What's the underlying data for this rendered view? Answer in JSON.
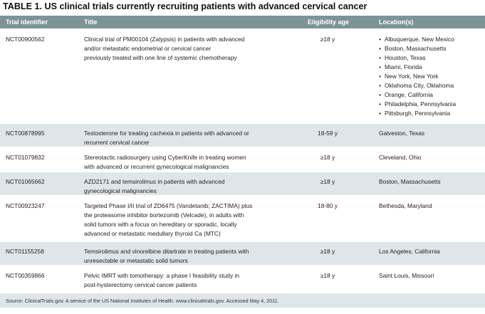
{
  "caption": "TABLE 1. US clinical trials currently recruiting patients with advanced cervical cancer",
  "headers": [
    "Trial identifier",
    "Title",
    "Eligibility age",
    "Location(s)"
  ],
  "rows": [
    {
      "id": "NCT00900562",
      "title_lines": [
        "Clinical trial of PM00104 (Zalypsis) in patients with advanced",
        "and/or metastatic endometrial or cervical cancer",
        "previously treated with one line of systemic chemotherapy"
      ],
      "age": "≥18 y",
      "locations": [
        "Albuquerque, New Mexico",
        "Boston, Massachusetts",
        "Houston, Texas",
        "Miami, Florida",
        "New York, New York",
        "Oklahoma City, Oklahoma",
        "Orange, California",
        "Philadelphia, Pennsylvania",
        "Pittsburgh, Pennsylvania"
      ]
    },
    {
      "id": "NCT00878995",
      "title_lines": [
        "Testosterone for treating cachexia in patients with advanced or",
        "recurrent cervical cancer"
      ],
      "age": "18-59 y",
      "locations": [
        "Galveston, Texas"
      ]
    },
    {
      "id": "NCT01079832",
      "title_lines": [
        "Stereotactic radiosurgery using CyberKnife in treating women",
        "with advanced or recurrent gynecological malignancies"
      ],
      "age": "≥18 y",
      "locations": [
        "Cleveland, Ohio"
      ]
    },
    {
      "id": "NCT01065662",
      "title_lines": [
        "AZD2171 and temsirolimus in patients with advanced",
        "gynecological malignancies"
      ],
      "age": "≥18 y",
      "locations": [
        "Boston, Massachusetts"
      ]
    },
    {
      "id": "NCT00923247",
      "title_lines": [
        "Targeted Phase I/II trial of ZD6475 (Vandetanib; ZACTIMA) plus",
        "the proteasome inhibitor bortezomib (Velcade), in adults with",
        "solid tumors with a focus on hereditary or sporadic, locally",
        "advanced or metastatic medullary thyroid Ca (MTC)"
      ],
      "age": "18-80 y",
      "locations": [
        "Bethesda, Maryland"
      ]
    },
    {
      "id": "NCT01155258",
      "title_lines": [
        "Temsirolimus and vinorelbine ditartrate in treating patients with",
        "unresectable or metastatic solid tumors"
      ],
      "age": "≥18 y",
      "locations": [
        "Los Angeles, California"
      ]
    },
    {
      "id": "NCT00359866",
      "title_lines": [
        "Pelvic IMRT with tomotherapy: a phase I feasibility study in",
        "post-hysterectomy cervical cancer patients"
      ],
      "age": "≥18 y",
      "locations": [
        "Saint Louis, Missouri"
      ]
    }
  ],
  "footer": "Source: ClinicalTrials.gov. A service of the US National Institutes of Health. www.clinicaltrials.gov. Accessed May 4, 2011.",
  "colors": {
    "header_bg": "#7d9497",
    "alt_row_bg": "#dfe6e9"
  }
}
